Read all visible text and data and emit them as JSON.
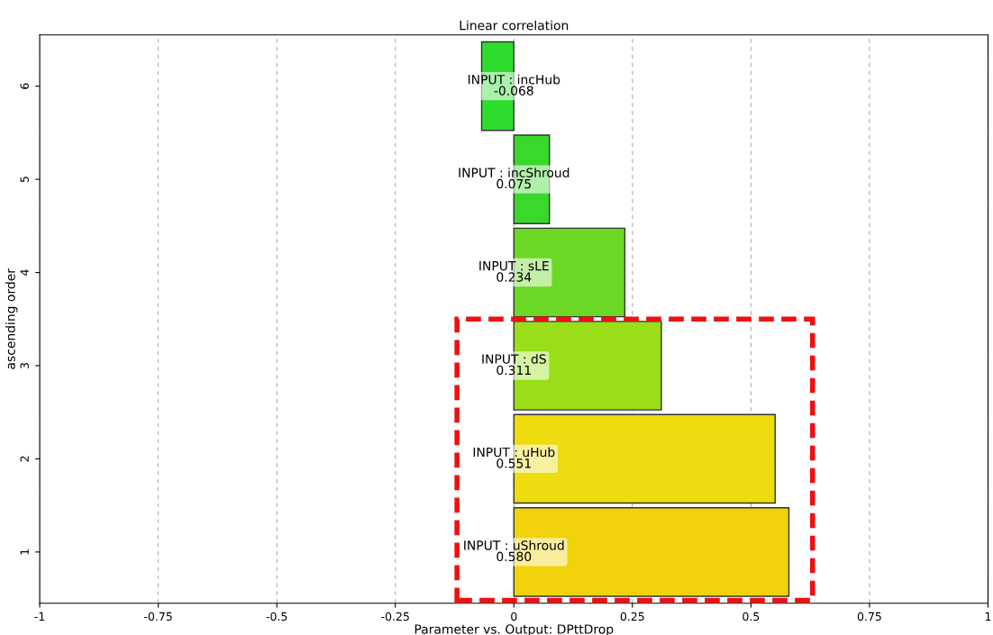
{
  "chart_data": {
    "type": "bar",
    "orientation": "horizontal",
    "title": "Linear correlation",
    "xlabel": "Parameter vs. Output: DPttDrop",
    "ylabel": "ascending order",
    "categories": [
      "6",
      "5",
      "4",
      "3",
      "2",
      "1"
    ],
    "values": [
      -0.068,
      0.075,
      0.234,
      0.311,
      0.551,
      0.58
    ],
    "colors": [
      "#2edc2e",
      "#3ad82a",
      "#6cd826",
      "#9ade1a",
      "#ecdc10",
      "#f2d20a"
    ],
    "value_labels": [
      "INPUT : incHub\n-0.068",
      "INPUT : incShroud\n0.075",
      "INPUT : sLE\n0.234",
      "INPUT : dS\n0.311",
      "INPUT : uHub\n0.551",
      "INPUT : uShroud\n0.580"
    ],
    "xlim": [
      -1,
      1
    ],
    "xticks": [
      -1,
      -0.75,
      -0.5,
      -0.25,
      0,
      0.25,
      0.5,
      0.75,
      1
    ],
    "grid": "x"
  }
}
